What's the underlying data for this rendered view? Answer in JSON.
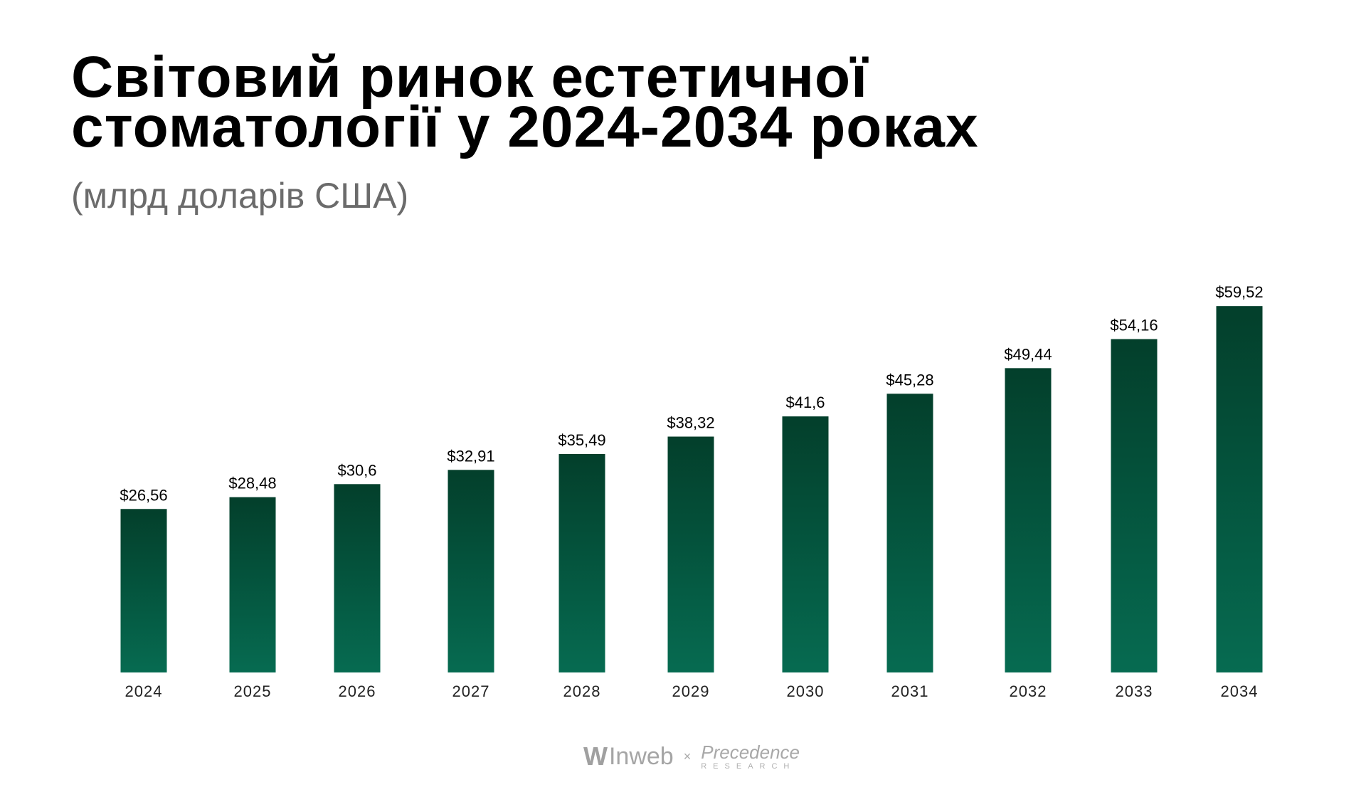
{
  "title_lines": [
    "Світовий ринок естетичної",
    "стоматології у 2024-2034 роках"
  ],
  "subtitle": "(млрд доларів США)",
  "footer": {
    "brand1": "Inweb",
    "separator": "×",
    "brand2_line1": "Precedence",
    "brand2_line2": "RESEARCH"
  },
  "colors": {
    "bar_top": "#033f2b",
    "bar_bottom": "#066b51",
    "label": "#000000",
    "axis_label": "#222222"
  },
  "chart_data": {
    "type": "bar",
    "title": "Світовий ринок естетичної стоматології у 2024-2034 роках",
    "subtitle": "(млрд доларів США)",
    "categories": [
      "2024",
      "2025",
      "2026",
      "2027",
      "2028",
      "2029",
      "2030",
      "2031",
      "2032",
      "2033",
      "2034"
    ],
    "values": [
      26.56,
      28.48,
      30.6,
      32.91,
      35.49,
      38.32,
      41.6,
      45.28,
      49.44,
      54.16,
      59.52
    ],
    "data_labels": [
      "$26,56",
      "$28,48",
      "$30,6",
      "$32,91",
      "$35,49",
      "$38,32",
      "$41,6",
      "$45,28",
      "$49,44",
      "$54,16",
      "$59,52"
    ],
    "xlabel": "",
    "ylabel": "",
    "ylim": [
      0,
      60
    ],
    "grid": false,
    "legend": "none"
  }
}
